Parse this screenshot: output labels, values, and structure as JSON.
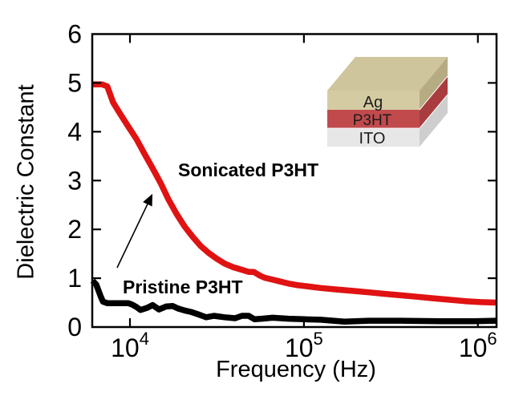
{
  "figure": {
    "background": "#ffffff",
    "axis_color": "#000000"
  },
  "chart_data": {
    "type": "line",
    "title": "",
    "xlabel": "Frequency (Hz)",
    "ylabel": "Dielectric Constant",
    "x_scale": "log",
    "xlim": [
      6070,
      1280000
    ],
    "ylim": [
      0,
      6
    ],
    "grid": false,
    "legend_position": "none (labels drawn inline on plot)",
    "x_ticks": [
      {
        "value": 10000,
        "base": "10",
        "exp": "4"
      },
      {
        "value": 100000,
        "base": "10",
        "exp": "5"
      },
      {
        "value": 1000000,
        "base": "10",
        "exp": "6"
      }
    ],
    "y_ticks": [
      0,
      1,
      2,
      3,
      4,
      5,
      6
    ],
    "series": [
      {
        "name": "Sonicated P3HT",
        "color": "#e01212",
        "line_width": 7.5,
        "points": [
          [
            6100,
            4.97
          ],
          [
            6900,
            4.97
          ],
          [
            7400,
            4.93
          ],
          [
            8000,
            4.6
          ],
          [
            8800,
            4.36
          ],
          [
            9800,
            4.1
          ],
          [
            10900,
            3.85
          ],
          [
            12100,
            3.55
          ],
          [
            13500,
            3.25
          ],
          [
            15000,
            2.95
          ],
          [
            16600,
            2.62
          ],
          [
            18500,
            2.32
          ],
          [
            20600,
            2.06
          ],
          [
            22900,
            1.85
          ],
          [
            25500,
            1.66
          ],
          [
            28300,
            1.52
          ],
          [
            31500,
            1.4
          ],
          [
            35000,
            1.3
          ],
          [
            38900,
            1.23
          ],
          [
            43300,
            1.18
          ],
          [
            48100,
            1.13
          ],
          [
            51500,
            1.13
          ],
          [
            56000,
            1.05
          ],
          [
            59500,
            1.01
          ],
          [
            66100,
            0.97
          ],
          [
            73500,
            0.93
          ],
          [
            81700,
            0.89
          ],
          [
            90900,
            0.86
          ],
          [
            101000,
            0.84
          ],
          [
            112000,
            0.82
          ],
          [
            125000,
            0.8
          ],
          [
            154000,
            0.77
          ],
          [
            191000,
            0.74
          ],
          [
            236000,
            0.71
          ],
          [
            292000,
            0.68
          ],
          [
            361000,
            0.65
          ],
          [
            446000,
            0.62
          ],
          [
            552000,
            0.59
          ],
          [
            682000,
            0.56
          ],
          [
            844000,
            0.53
          ],
          [
            1040000,
            0.51
          ],
          [
            1280000,
            0.5
          ]
        ]
      },
      {
        "name": "Pristine P3HT",
        "color": "#000000",
        "line_width": 7.5,
        "points": [
          [
            6100,
            0.95
          ],
          [
            6400,
            0.87
          ],
          [
            6800,
            0.62
          ],
          [
            7000,
            0.52
          ],
          [
            7400,
            0.49
          ],
          [
            9800,
            0.49
          ],
          [
            10300,
            0.46
          ],
          [
            10900,
            0.41
          ],
          [
            11500,
            0.35
          ],
          [
            12500,
            0.39
          ],
          [
            13500,
            0.45
          ],
          [
            14700,
            0.36
          ],
          [
            16100,
            0.42
          ],
          [
            17600,
            0.43
          ],
          [
            18900,
            0.38
          ],
          [
            20600,
            0.34
          ],
          [
            22400,
            0.31
          ],
          [
            24700,
            0.26
          ],
          [
            27400,
            0.2
          ],
          [
            30400,
            0.23
          ],
          [
            35000,
            0.2
          ],
          [
            40200,
            0.18
          ],
          [
            44000,
            0.23
          ],
          [
            48100,
            0.23
          ],
          [
            52000,
            0.16
          ],
          [
            57200,
            0.17
          ],
          [
            66100,
            0.19
          ],
          [
            81700,
            0.17
          ],
          [
            101000,
            0.16
          ],
          [
            125000,
            0.15
          ],
          [
            171000,
            0.11
          ],
          [
            236000,
            0.13
          ],
          [
            361000,
            0.13
          ],
          [
            614000,
            0.12
          ],
          [
            942000,
            0.12
          ],
          [
            1280000,
            0.13
          ]
        ]
      }
    ]
  },
  "annotations": {
    "sonicated_label": "Sonicated P3HT",
    "pristine_label": "Pristine P3HT"
  },
  "inset": {
    "layers": [
      {
        "label": "Ag",
        "front_color": "#d5cba2",
        "side_color": "#b6ab83",
        "top_color": "#cec59c"
      },
      {
        "label": "P3HT",
        "front_color": "#c14a4c",
        "side_color": "#a93c3e"
      },
      {
        "label": "ITO",
        "front_color": "#e7e7e7",
        "side_color": "#cecece"
      }
    ],
    "label_color": "#1c1c1c"
  }
}
